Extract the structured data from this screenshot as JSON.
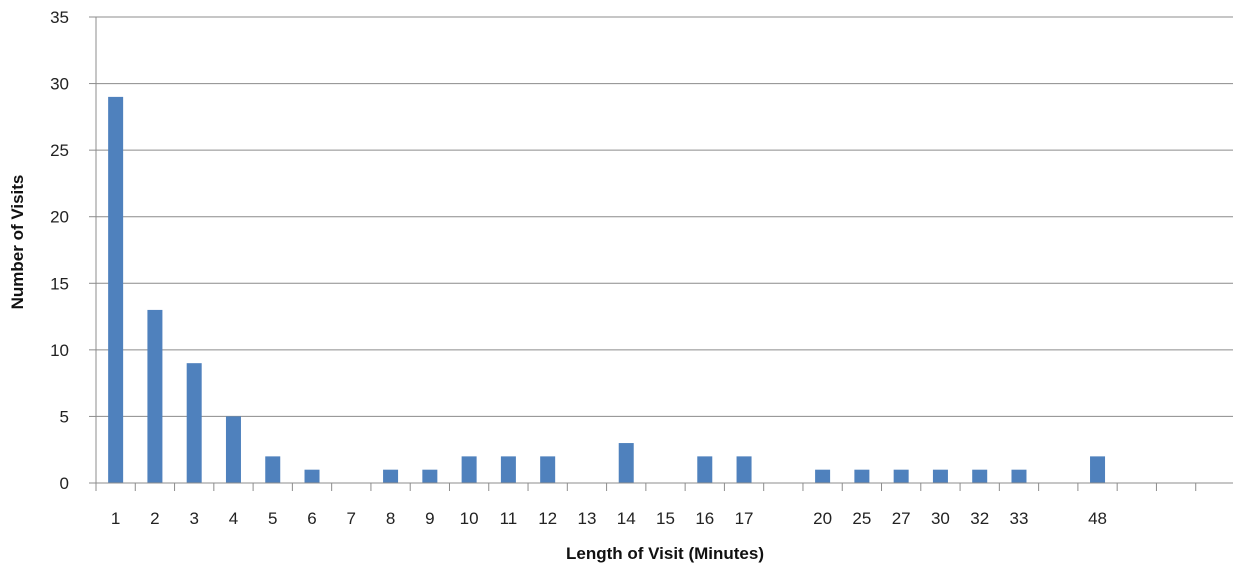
{
  "chart_data": {
    "type": "bar",
    "title": "",
    "xlabel": "Length of Visit (Minutes)",
    "ylabel": "Number of Visits",
    "ylim": [
      0,
      35
    ],
    "y_ticks": [
      "0",
      "5",
      "10",
      "15",
      "20",
      "25",
      "30",
      "35"
    ],
    "grid": true,
    "legend": "none",
    "bar_color": "#4f81bd",
    "categories": [
      "1",
      "2",
      "3",
      "4",
      "5",
      "6",
      "7",
      "8",
      "9",
      "10",
      "11",
      "12",
      "13",
      "14",
      "15",
      "16",
      "17",
      "",
      "20",
      "25",
      "27",
      "30",
      "32",
      "33",
      "",
      "48",
      "",
      "",
      ""
    ],
    "values": [
      29,
      13,
      9,
      5,
      2,
      1,
      0,
      1,
      1,
      2,
      2,
      2,
      0,
      3,
      0,
      2,
      2,
      0,
      1,
      1,
      1,
      1,
      1,
      1,
      0,
      2,
      0,
      0,
      0
    ]
  }
}
